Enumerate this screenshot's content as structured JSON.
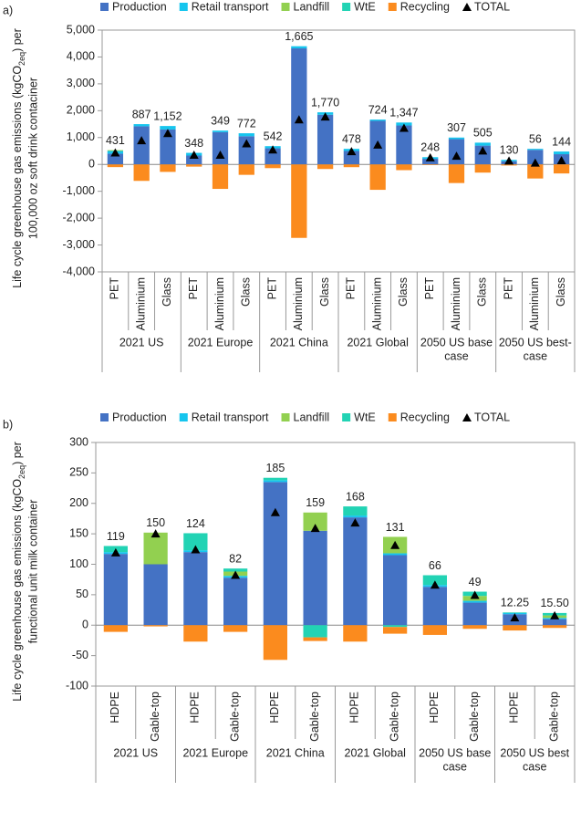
{
  "chart_data": [
    {
      "type": "bar",
      "panel": "a)",
      "ylabel": [
        "Life cycle greenhouse gas emissions (kgCO",
        "2eq",
        ") per"
      ],
      "ylabel2": "100,000 oz soft drink contaciner",
      "groups": [
        {
          "name": [
            "2021 US"
          ],
          "categories": [
            "PET",
            "Aluminium",
            "Glass"
          ]
        },
        {
          "name": [
            "2021 Europe"
          ],
          "categories": [
            "PET",
            "Aluminium",
            "Glass"
          ]
        },
        {
          "name": [
            "2021 China"
          ],
          "categories": [
            "PET",
            "Aluminium",
            "Glass"
          ]
        },
        {
          "name": [
            "2021 Global"
          ],
          "categories": [
            "PET",
            "Aluminium",
            "Glass"
          ]
        },
        {
          "name": [
            "2050 US base",
            "case"
          ],
          "categories": [
            "PET",
            "Aluminium",
            "Glass"
          ]
        },
        {
          "name": [
            "2050 US best-",
            "case"
          ],
          "categories": [
            "PET",
            "Aluminium",
            "Glass"
          ]
        }
      ],
      "series": [
        {
          "name": "Production",
          "color": "#4472c4",
          "values": [
            400,
            1420,
            1300,
            330,
            1200,
            1050,
            600,
            4320,
            1850,
            500,
            1620,
            1450,
            210,
            940,
            700,
            120,
            540,
            380
          ]
        },
        {
          "name": "Retail transport",
          "color": "#16c5ee",
          "values": [
            100,
            80,
            130,
            100,
            60,
            110,
            80,
            80,
            90,
            80,
            50,
            110,
            60,
            60,
            110,
            50,
            40,
            100
          ]
        },
        {
          "name": "Landfill",
          "color": "#92d050",
          "values": [
            31,
            0,
            0,
            0,
            0,
            0,
            0,
            0,
            0,
            0,
            0,
            0,
            0,
            0,
            0,
            0,
            0,
            0
          ]
        },
        {
          "name": "WtE",
          "color": "#22d3b4",
          "values": [
            0,
            0,
            0,
            0,
            0,
            0,
            0,
            0,
            0,
            0,
            0,
            0,
            0,
            0,
            0,
            0,
            0,
            0
          ]
        },
        {
          "name": "Recycling",
          "color": "#fb8b1e",
          "values": [
            -100,
            -613,
            -278,
            -82,
            -911,
            -388,
            -138,
            -2735,
            -170,
            -102,
            -946,
            -213,
            -22,
            -693,
            -305,
            -40,
            -524,
            -336
          ]
        },
        {
          "name": "TOTAL",
          "color": "#000000",
          "style": "marker",
          "values": [
            431,
            887,
            1152,
            348,
            349,
            772,
            542,
            1665,
            1770,
            478,
            724,
            1347,
            248,
            307,
            505,
            130,
            56,
            144
          ],
          "value_labels": [
            "431",
            "887",
            "1,152",
            "348",
            "349",
            "772",
            "542",
            "1,665",
            "1,770",
            "478",
            "724",
            "1,347",
            "248",
            "307",
            "505",
            "130",
            "56",
            "144"
          ]
        }
      ],
      "ylim": [
        -4000,
        5000
      ],
      "yticks": [
        {
          "value": -4000,
          "label": "-4,000"
        },
        {
          "value": -3000,
          "label": "-3,000"
        },
        {
          "value": -2000,
          "label": "-2,000"
        },
        {
          "value": -1000,
          "label": "-1,000"
        },
        0,
        {
          "value": 1000,
          "label": "1,000"
        },
        {
          "value": 2000,
          "label": "2,000"
        },
        {
          "value": 3000,
          "label": "3,000"
        },
        {
          "value": 4000,
          "label": "4,000"
        },
        {
          "value": 5000,
          "label": "5,000"
        }
      ],
      "legend": "top"
    },
    {
      "type": "bar",
      "panel": "b)",
      "ylabel": [
        "Life cycle greenhouse gas emissions (kgCO",
        "2eq",
        ") per"
      ],
      "ylabel2": "functional unit milk container",
      "groups": [
        {
          "name": [
            "2021 US"
          ],
          "categories": [
            "HDPE",
            "Gable-top"
          ]
        },
        {
          "name": [
            "2021 Europe"
          ],
          "categories": [
            "HDPE",
            "Gable-top"
          ]
        },
        {
          "name": [
            "2021 China"
          ],
          "categories": [
            "HDPE",
            "Gable-top"
          ]
        },
        {
          "name": [
            "2021 Global"
          ],
          "categories": [
            "HDPE",
            "Gable-top"
          ]
        },
        {
          "name": [
            "2050 US base",
            "case"
          ],
          "categories": [
            "HDPE",
            "Gable-top"
          ]
        },
        {
          "name": [
            "2050 US best",
            "case"
          ],
          "categories": [
            "HDPE",
            "Gable-top"
          ]
        }
      ],
      "series": [
        {
          "name": "Production",
          "color": "#4472c4",
          "values": [
            117,
            100,
            120,
            78,
            235,
            155,
            177,
            115,
            63,
            37,
            18,
            10
          ]
        },
        {
          "name": "Retail transport",
          "color": "#16c5ee",
          "values": [
            3,
            0,
            3,
            3,
            3,
            0,
            3,
            3,
            3,
            3,
            2,
            2
          ]
        },
        {
          "name": "Landfill",
          "color": "#92d050",
          "values": [
            0,
            52,
            0,
            7,
            0,
            30,
            0,
            27,
            0,
            8,
            0,
            4
          ]
        },
        {
          "name": "WtE",
          "color": "#22d3b4",
          "values": [
            10,
            0,
            28,
            5,
            4,
            -20,
            15,
            -3,
            16,
            7,
            1,
            4
          ]
        },
        {
          "name": "Recycling",
          "color": "#fb8b1e",
          "values": [
            -11,
            -2,
            -27,
            -11,
            -57,
            -6,
            -27,
            -11,
            -16,
            -6,
            -8.75,
            -4.5
          ]
        },
        {
          "name": "TOTAL",
          "color": "#000000",
          "style": "marker",
          "values": [
            119,
            150,
            124,
            82,
            185,
            159,
            168,
            131,
            66,
            49,
            12.25,
            15.5
          ],
          "value_labels": [
            "119",
            "150",
            "124",
            "82",
            "185",
            "159",
            "168",
            "131",
            "66",
            "49",
            "12.25",
            "15.50"
          ]
        }
      ],
      "ylim": [
        -100,
        300
      ],
      "yticks": [
        -100,
        -50,
        0,
        50,
        100,
        150,
        200,
        250,
        300
      ],
      "legend": "top"
    }
  ]
}
